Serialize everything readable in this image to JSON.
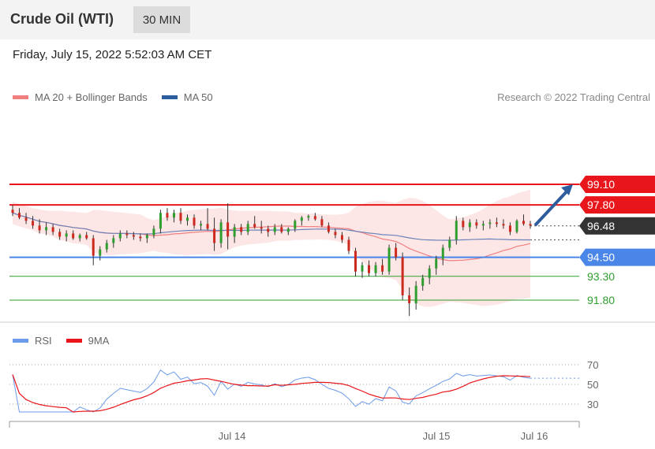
{
  "header": {
    "title": "Crude Oil (WTI)",
    "timeframe": "30 MIN"
  },
  "datetime": "Friday, July 15, 2022 5:52:03 AM CET",
  "legend": {
    "items": [
      {
        "label": "MA 20 + Bollinger Bands",
        "color": "#f08080"
      },
      {
        "label": "MA 50",
        "color": "#2e5d9e"
      }
    ],
    "credit": "Research © 2022 Trading Central"
  },
  "colors": {
    "resistance": "#e8161b",
    "support": "#4a86e8",
    "minor_support": "#2e9e2e",
    "up_candle": "#2e9e2e",
    "down_candle": "#cc2a1f",
    "bollinger_fill": "#fde2e2",
    "ma20": "#f08080",
    "ma50": "#6b83b8",
    "arrow": "#2e5d9e",
    "last_price_tag": "#333333",
    "rsi": "#6b9bea",
    "rsi_ma": "#e8161b"
  },
  "levels": [
    {
      "label": "99.10",
      "value": 99.1,
      "kind": "resistance"
    },
    {
      "label": "97.80",
      "value": 97.8,
      "kind": "resistance"
    },
    {
      "label": "96.48",
      "value": 96.48,
      "kind": "last"
    },
    {
      "label": "94.50",
      "value": 94.5,
      "kind": "support"
    },
    {
      "label": "93.30",
      "value": 93.3,
      "kind": "minor"
    },
    {
      "label": "91.80",
      "value": 91.8,
      "kind": "minor"
    }
  ],
  "rsi_legend": {
    "items": [
      {
        "label": "RSI",
        "color": "#6b9bea"
      },
      {
        "label": "9MA",
        "color": "#e8161b"
      }
    ]
  },
  "chart_data": {
    "type": "candlestick",
    "price_ylim": [
      91.0,
      104.3
    ],
    "candles": [
      [
        97.5,
        97.8,
        97.1,
        97.3
      ],
      [
        97.3,
        97.6,
        96.9,
        97.0
      ],
      [
        97.0,
        97.3,
        96.6,
        96.8
      ],
      [
        96.8,
        97.1,
        96.3,
        96.5
      ],
      [
        96.5,
        96.9,
        96.0,
        96.2
      ],
      [
        96.2,
        96.7,
        95.9,
        96.4
      ],
      [
        96.4,
        96.6,
        95.9,
        96.1
      ],
      [
        96.1,
        96.3,
        95.6,
        95.8
      ],
      [
        95.8,
        96.2,
        95.5,
        96.0
      ],
      [
        96.0,
        96.2,
        95.6,
        95.7
      ],
      [
        95.7,
        96.0,
        95.5,
        95.9
      ],
      [
        95.9,
        96.1,
        95.6,
        95.7
      ],
      [
        95.7,
        95.9,
        94.0,
        94.6
      ],
      [
        94.6,
        95.2,
        94.3,
        95.0
      ],
      [
        95.0,
        95.6,
        94.8,
        95.4
      ],
      [
        95.4,
        95.9,
        95.1,
        95.7
      ],
      [
        95.7,
        96.2,
        95.5,
        96.0
      ],
      [
        96.0,
        96.2,
        95.7,
        95.9
      ],
      [
        95.9,
        96.1,
        95.6,
        95.8
      ],
      [
        95.8,
        96.0,
        95.5,
        95.7
      ],
      [
        95.7,
        96.0,
        95.4,
        95.9
      ],
      [
        95.9,
        96.5,
        95.7,
        96.3
      ],
      [
        96.3,
        97.5,
        96.0,
        97.3
      ],
      [
        97.3,
        97.6,
        96.8,
        97.0
      ],
      [
        97.0,
        97.5,
        96.7,
        97.3
      ],
      [
        97.3,
        97.6,
        96.6,
        96.8
      ],
      [
        96.8,
        97.2,
        96.5,
        97.0
      ],
      [
        97.0,
        97.2,
        96.3,
        96.5
      ],
      [
        96.5,
        96.8,
        96.2,
        96.6
      ],
      [
        96.6,
        97.6,
        96.2,
        96.3
      ],
      [
        96.3,
        97.0,
        94.9,
        95.4
      ],
      [
        95.4,
        96.9,
        95.1,
        96.7
      ],
      [
        96.7,
        97.9,
        95.0,
        95.8
      ],
      [
        95.8,
        96.6,
        95.4,
        96.4
      ],
      [
        96.4,
        96.6,
        95.9,
        96.1
      ],
      [
        96.1,
        96.8,
        95.9,
        96.6
      ],
      [
        96.6,
        97.1,
        96.3,
        96.4
      ],
      [
        96.4,
        96.8,
        96.0,
        96.3
      ],
      [
        96.3,
        96.5,
        95.8,
        96.1
      ],
      [
        96.1,
        96.6,
        95.9,
        96.4
      ],
      [
        96.4,
        96.6,
        96.0,
        96.1
      ],
      [
        96.1,
        96.4,
        95.9,
        96.3
      ],
      [
        96.3,
        96.9,
        96.1,
        96.8
      ],
      [
        96.8,
        97.1,
        96.5,
        97.0
      ],
      [
        97.0,
        97.2,
        96.8,
        97.1
      ],
      [
        97.1,
        97.3,
        96.8,
        96.9
      ],
      [
        96.9,
        97.1,
        96.4,
        96.5
      ],
      [
        96.5,
        96.7,
        96.0,
        96.1
      ],
      [
        96.1,
        96.3,
        95.7,
        95.9
      ],
      [
        95.9,
        96.1,
        95.4,
        95.6
      ],
      [
        95.6,
        95.8,
        94.7,
        94.9
      ],
      [
        94.9,
        95.1,
        93.3,
        93.6
      ],
      [
        93.6,
        94.2,
        93.2,
        94.0
      ],
      [
        94.0,
        94.3,
        93.3,
        93.5
      ],
      [
        93.5,
        94.2,
        93.3,
        94.0
      ],
      [
        94.0,
        94.4,
        93.4,
        93.6
      ],
      [
        93.6,
        95.3,
        93.4,
        95.1
      ],
      [
        95.1,
        95.4,
        94.3,
        94.5
      ],
      [
        94.5,
        94.8,
        91.8,
        92.1
      ],
      [
        92.1,
        92.6,
        90.8,
        91.6
      ],
      [
        91.6,
        93.0,
        91.2,
        92.7
      ],
      [
        92.7,
        93.4,
        92.4,
        93.2
      ],
      [
        93.2,
        94.0,
        92.8,
        93.8
      ],
      [
        93.8,
        94.6,
        93.4,
        94.4
      ],
      [
        94.4,
        95.3,
        94.0,
        95.1
      ],
      [
        95.1,
        95.8,
        94.9,
        95.6
      ],
      [
        95.6,
        97.1,
        95.3,
        96.8
      ],
      [
        96.8,
        97.0,
        96.2,
        96.4
      ],
      [
        96.4,
        96.9,
        96.1,
        96.7
      ],
      [
        96.7,
        96.9,
        96.3,
        96.5
      ],
      [
        96.5,
        96.8,
        96.2,
        96.6
      ],
      [
        96.6,
        96.9,
        96.3,
        96.7
      ],
      [
        96.7,
        97.0,
        96.4,
        96.6
      ],
      [
        96.6,
        96.9,
        96.3,
        96.5
      ],
      [
        96.5,
        96.7,
        95.9,
        96.1
      ],
      [
        96.1,
        96.9,
        96.0,
        96.8
      ],
      [
        96.8,
        97.2,
        96.5,
        96.6
      ],
      [
        96.6,
        96.8,
        96.3,
        96.5
      ]
    ],
    "rsi_ylim": [
      20,
      80
    ],
    "rsi_ticks": [
      70,
      50,
      30
    ],
    "x_tick_labels": [
      "Jul 14",
      "Jul 15",
      "Jul 16"
    ]
  }
}
